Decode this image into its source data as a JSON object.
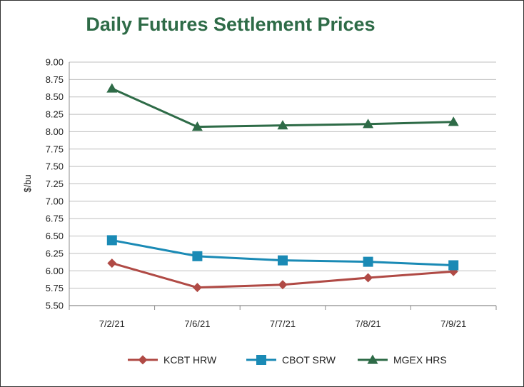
{
  "chart_data": {
    "type": "line",
    "title": "Daily Futures Settlement Prices",
    "xlabel": "",
    "ylabel": "$/bu",
    "ylim": [
      5.5,
      9.0
    ],
    "ytick_step": 0.25,
    "yticks": [
      "9.00",
      "8.75",
      "8.50",
      "8.25",
      "8.00",
      "7.75",
      "7.50",
      "7.25",
      "7.00",
      "6.75",
      "6.50",
      "6.25",
      "6.00",
      "5.75",
      "5.50"
    ],
    "categories": [
      "7/2/21",
      "7/6/21",
      "7/7/21",
      "7/8/21",
      "7/9/21"
    ],
    "grid": true,
    "legend_position": "bottom",
    "series": [
      {
        "name": "KCBT HRW",
        "color": "#b04a45",
        "marker": "diamond",
        "values": [
          6.11,
          5.76,
          5.8,
          5.9,
          5.99
        ]
      },
      {
        "name": "CBOT SRW",
        "color": "#1a8ab5",
        "marker": "square",
        "values": [
          6.44,
          6.21,
          6.15,
          6.13,
          6.08
        ]
      },
      {
        "name": "MGEX HRS",
        "color": "#2e6b47",
        "marker": "triangle",
        "values": [
          8.62,
          8.07,
          8.09,
          8.11,
          8.14
        ]
      }
    ]
  }
}
